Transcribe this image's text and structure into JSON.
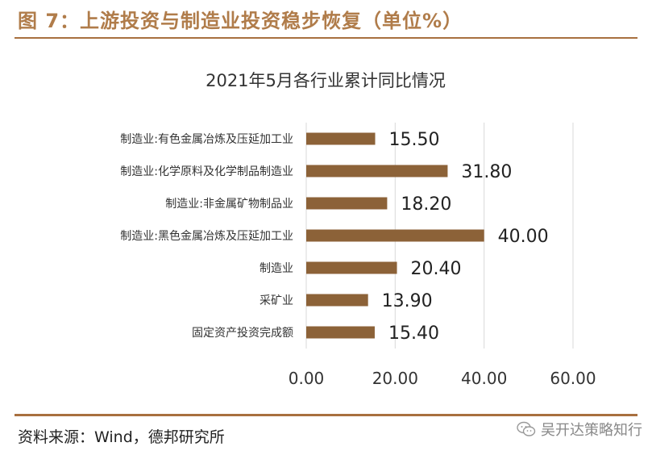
{
  "figure": {
    "title": "图 7：上游投资与制造业投资稳步恢复（单位%）",
    "source": "资料来源：Wind，德邦研究所",
    "watermark": "吴开达策略知行"
  },
  "colors": {
    "bar": "#8c6238",
    "accent": "#b07c4a",
    "rule": "#a8703f",
    "grid": "#d9d9d9"
  },
  "chart_data": {
    "type": "bar",
    "orientation": "horizontal",
    "title": "2021年5月各行业累计同比情况",
    "categories": [
      "制造业:有色金属冶炼及压延加工业",
      "制造业:化学原料及化学制品制造业",
      "制造业:非金属矿物制品业",
      "制造业:黑色金属冶炼及压延加工业",
      "制造业",
      "采矿业",
      "固定资产投资完成额"
    ],
    "values": [
      15.5,
      31.8,
      18.2,
      40.0,
      20.4,
      13.9,
      15.4
    ],
    "value_labels": [
      "15.50",
      "31.80",
      "18.20",
      "40.00",
      "20.40",
      "13.90",
      "15.40"
    ],
    "xlim": [
      0,
      60
    ],
    "ticks": [
      0,
      20,
      40,
      60
    ],
    "tick_labels": [
      "0.00",
      "20.00",
      "40.00",
      "60.00"
    ],
    "grid": true,
    "legend": "none"
  }
}
